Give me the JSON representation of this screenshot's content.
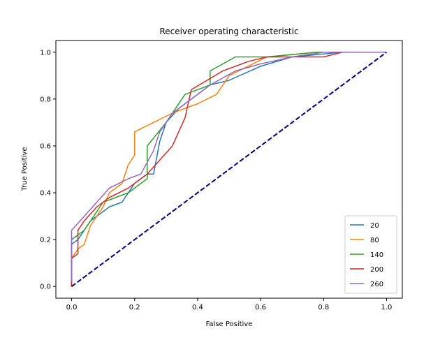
{
  "chart_data": {
    "type": "line",
    "title": "Receiver operating characteristic",
    "xlabel": "False Positive",
    "ylabel": "True Positive",
    "xlim": [
      -0.05,
      1.05
    ],
    "ylim": [
      -0.05,
      1.05
    ],
    "xticks": [
      "0.0",
      "0.2",
      "0.4",
      "0.6",
      "0.8",
      "1.0"
    ],
    "yticks": [
      "0.0",
      "0.2",
      "0.4",
      "0.6",
      "0.8",
      "1.0"
    ],
    "xtick_values": [
      0,
      0.2,
      0.4,
      0.6,
      0.8,
      1.0
    ],
    "ytick_values": [
      0,
      0.2,
      0.4,
      0.6,
      0.8,
      1.0
    ],
    "grid": false,
    "legend_position": "lower-right",
    "diagonal": {
      "x": [
        0,
        1
      ],
      "y": [
        0,
        1
      ],
      "color": "#000080",
      "style": "dashed"
    },
    "series": [
      {
        "name": "20",
        "color": "#1f77b4",
        "x": [
          0,
          0,
          0.02,
          0.04,
          0.06,
          0.08,
          0.12,
          0.16,
          0.2,
          0.24,
          0.26,
          0.28,
          0.3,
          0.34,
          0.38,
          0.44,
          0.5,
          0.6,
          0.7,
          0.78,
          0.86,
          1.0
        ],
        "y": [
          0,
          0.18,
          0.2,
          0.24,
          0.28,
          0.3,
          0.34,
          0.36,
          0.44,
          0.48,
          0.48,
          0.62,
          0.7,
          0.76,
          0.8,
          0.86,
          0.88,
          0.94,
          0.98,
          0.99,
          1.0,
          1.0
        ]
      },
      {
        "name": "80",
        "color": "#ff7f0e",
        "x": [
          0,
          0,
          0.02,
          0.04,
          0.06,
          0.1,
          0.12,
          0.16,
          0.18,
          0.2,
          0.2,
          0.32,
          0.4,
          0.46,
          0.5,
          0.56,
          0.62,
          0.7,
          0.78,
          0.86,
          1.0
        ],
        "y": [
          0,
          0.12,
          0.16,
          0.18,
          0.26,
          0.34,
          0.4,
          0.44,
          0.52,
          0.56,
          0.66,
          0.74,
          0.78,
          0.82,
          0.9,
          0.94,
          0.98,
          0.99,
          1.0,
          1.0,
          1.0
        ]
      },
      {
        "name": "140",
        "color": "#2ca02c",
        "x": [
          0,
          0,
          0.02,
          0.04,
          0.06,
          0.1,
          0.14,
          0.18,
          0.24,
          0.24,
          0.3,
          0.36,
          0.44,
          0.44,
          0.52,
          0.62,
          0.78,
          1.0
        ],
        "y": [
          0,
          0.2,
          0.22,
          0.24,
          0.28,
          0.36,
          0.38,
          0.4,
          0.46,
          0.6,
          0.7,
          0.82,
          0.86,
          0.92,
          0.98,
          0.98,
          1.0,
          1.0
        ]
      },
      {
        "name": "200",
        "color": "#d62728",
        "x": [
          0,
          0,
          0.02,
          0.02,
          0.04,
          0.08,
          0.12,
          0.18,
          0.24,
          0.32,
          0.36,
          0.38,
          0.48,
          0.56,
          0.62,
          0.7,
          0.8,
          0.86,
          1.0
        ],
        "y": [
          0,
          0.12,
          0.14,
          0.24,
          0.28,
          0.34,
          0.38,
          0.42,
          0.48,
          0.6,
          0.72,
          0.84,
          0.92,
          0.96,
          0.98,
          0.98,
          0.98,
          1.0,
          1.0
        ]
      },
      {
        "name": "260",
        "color": "#9467bd",
        "x": [
          0,
          0,
          0.04,
          0.08,
          0.12,
          0.18,
          0.22,
          0.26,
          0.28,
          0.32,
          0.36,
          0.44,
          0.52,
          0.6,
          0.7,
          0.8,
          1.0
        ],
        "y": [
          0.02,
          0.24,
          0.3,
          0.36,
          0.42,
          0.46,
          0.48,
          0.58,
          0.66,
          0.74,
          0.78,
          0.86,
          0.92,
          0.95,
          0.98,
          1.0,
          1.0
        ]
      }
    ]
  }
}
